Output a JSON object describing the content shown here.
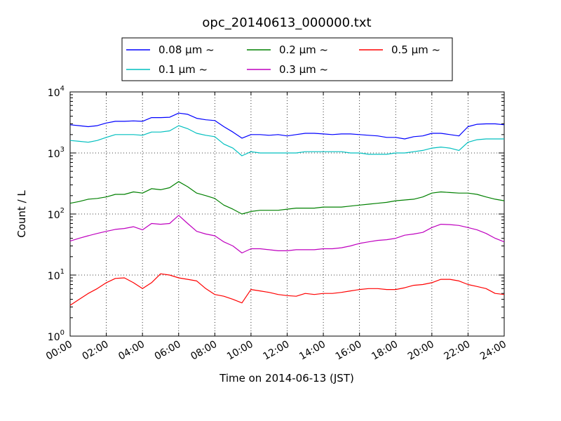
{
  "chart_data": {
    "type": "line",
    "title": "opc_20140613_000000.txt",
    "xlabel": "Time on 2014-06-13 (JST)",
    "ylabel": "Count / L",
    "yscale": "log",
    "ylim": [
      1,
      10000
    ],
    "xlim": [
      "00:00",
      "24:00"
    ],
    "x_ticks": [
      "00:00",
      "02:00",
      "04:00",
      "06:00",
      "08:00",
      "10:00",
      "12:00",
      "14:00",
      "16:00",
      "18:00",
      "20:00",
      "22:00",
      "24:00"
    ],
    "y_ticks": [
      {
        "value": 1,
        "base": "10",
        "exp": "0"
      },
      {
        "value": 10,
        "base": "10",
        "exp": "1"
      },
      {
        "value": 100,
        "base": "10",
        "exp": "2"
      },
      {
        "value": 1000,
        "base": "10",
        "exp": "3"
      },
      {
        "value": 10000,
        "base": "10",
        "exp": "4"
      }
    ],
    "grid": true,
    "legend_position": "top, above plot",
    "x_hours": [
      0,
      0.5,
      1,
      1.5,
      2,
      2.5,
      3,
      3.5,
      4,
      4.5,
      5,
      5.5,
      6,
      6.5,
      7,
      7.5,
      8,
      8.5,
      9,
      9.5,
      10,
      10.5,
      11,
      11.5,
      12,
      12.5,
      13,
      13.5,
      14,
      14.5,
      15,
      15.5,
      16,
      16.5,
      17,
      17.5,
      18,
      18.5,
      19,
      19.5,
      20,
      20.5,
      21,
      21.5,
      22,
      22.5,
      23,
      23.5,
      24
    ],
    "series": [
      {
        "name": "0.08 μm ~",
        "color": "#0000ff",
        "values": [
          2900,
          2800,
          2700,
          2800,
          3100,
          3300,
          3300,
          3350,
          3300,
          3800,
          3800,
          3850,
          4500,
          4300,
          3700,
          3500,
          3400,
          2700,
          2200,
          1750,
          2000,
          2000,
          1950,
          2000,
          1900,
          2000,
          2100,
          2100,
          2050,
          2000,
          2050,
          2050,
          2000,
          1950,
          1900,
          1800,
          1800,
          1700,
          1850,
          1900,
          2100,
          2100,
          2000,
          1900,
          2700,
          2950,
          3000,
          3000,
          2900
        ]
      },
      {
        "name": "0.1 μm ~",
        "color": "#00bfbf",
        "values": [
          1600,
          1550,
          1500,
          1600,
          1800,
          2000,
          2000,
          2000,
          1950,
          2200,
          2200,
          2300,
          2800,
          2500,
          2100,
          1950,
          1850,
          1400,
          1200,
          900,
          1050,
          1000,
          1000,
          1000,
          1000,
          1000,
          1050,
          1050,
          1050,
          1050,
          1050,
          1000,
          1000,
          950,
          950,
          950,
          1000,
          1000,
          1050,
          1100,
          1200,
          1250,
          1200,
          1100,
          1500,
          1650,
          1700,
          1700,
          1700
        ]
      },
      {
        "name": "0.2 μm ~",
        "color": "#008000",
        "values": [
          150,
          160,
          175,
          180,
          190,
          210,
          210,
          230,
          220,
          260,
          250,
          270,
          340,
          280,
          220,
          200,
          180,
          140,
          120,
          100,
          110,
          115,
          115,
          115,
          120,
          125,
          125,
          125,
          130,
          130,
          130,
          135,
          140,
          145,
          150,
          155,
          165,
          170,
          175,
          190,
          220,
          230,
          225,
          220,
          220,
          210,
          190,
          175,
          165
        ]
      },
      {
        "name": "0.3 μm ~",
        "color": "#bf00bf",
        "values": [
          36,
          40,
          44,
          48,
          52,
          56,
          58,
          62,
          55,
          70,
          68,
          70,
          95,
          70,
          52,
          47,
          44,
          35,
          30,
          23,
          27,
          27,
          26,
          25,
          25,
          26,
          26,
          26,
          27,
          27,
          28,
          30,
          33,
          35,
          37,
          38,
          40,
          45,
          47,
          50,
          60,
          68,
          67,
          65,
          60,
          55,
          48,
          40,
          35
        ]
      },
      {
        "name": "0.5 μm ~",
        "color": "#ff0000",
        "values": [
          3.2,
          4,
          5,
          6,
          7.5,
          8.8,
          9,
          7.5,
          6,
          7.5,
          10.5,
          10,
          9,
          8.5,
          8,
          6,
          4.8,
          4.5,
          4,
          3.5,
          5.8,
          5.5,
          5.2,
          4.8,
          4.6,
          4.5,
          5,
          4.8,
          5,
          5,
          5.2,
          5.5,
          5.8,
          6,
          6,
          5.8,
          5.8,
          6.2,
          6.8,
          7,
          7.5,
          8.5,
          8.5,
          8,
          7,
          6.5,
          6,
          5,
          4.8
        ]
      }
    ]
  }
}
